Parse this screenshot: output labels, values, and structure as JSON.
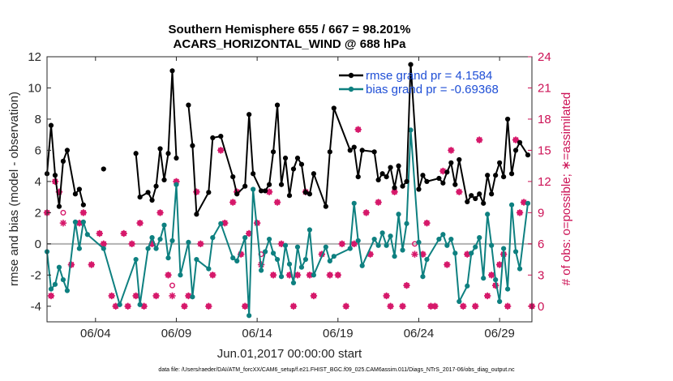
{
  "chart_data": {
    "type": "line",
    "title": [
      "Southern Hemisphere 655 / 667 = 98.201%",
      "ACARS_HORIZONTAL_WIND @ 688 hPa"
    ],
    "xlabel": "Jun.01,2017 00:00:00 start",
    "ylabel": "rmse and bias (model - observation)",
    "ylabel_right": "# of obs: o=possible; ∗=assimilated",
    "xlim": [
      1.0,
      31.0
    ],
    "ylim": [
      -5,
      12
    ],
    "ylim_right": [
      -1.5,
      24
    ],
    "x_tick_labels": [
      "06/04",
      "06/09",
      "06/14",
      "06/19",
      "06/24",
      "06/29"
    ],
    "x_tick_values": [
      4,
      9,
      14,
      19,
      24,
      29
    ],
    "y_ticks": [
      -4,
      -2,
      0,
      2,
      4,
      6,
      8,
      10,
      12
    ],
    "y_ticks_right": [
      0,
      3,
      6,
      9,
      12,
      15,
      18,
      21,
      24
    ],
    "legend": [
      "rmse grand pr = 4.1584",
      "bias grand pr = -0.69368"
    ],
    "colors": {
      "rmse": "#000000",
      "bias": "#0e8080",
      "obs": "#d6186a",
      "zero": "#b3b3b3"
    },
    "footer": "data file: /Users/raeder/DAI/ATM_forcXX/CAM6_setup/f.e21.FHIST_BGC.f09_025.CAM6assim.011/Diags_NTrS_2017-06/obs_diag_output.nc",
    "series": [
      {
        "name": "rmse",
        "x": [
          1.0,
          1.25,
          1.5,
          1.75,
          2.0,
          2.25,
          2.75,
          3.0,
          3.25,
          3.5,
          4.5,
          5.5,
          6.5,
          6.75,
          7.25,
          7.5,
          7.75,
          8.0,
          8.25,
          8.5,
          8.75,
          9.0,
          9.25,
          9.75,
          10.0,
          10.25,
          11.0,
          11.25,
          11.75,
          12.5,
          12.75,
          13.25,
          13.5,
          13.75,
          14.25,
          14.5,
          14.75,
          15.0,
          15.25,
          15.5,
          15.75,
          16.0,
          16.25,
          16.5,
          16.75,
          17.0,
          17.25,
          17.5,
          18.25,
          18.5,
          18.75,
          19.75,
          20.0,
          20.25,
          20.5,
          21.25,
          21.5,
          21.75,
          22.0,
          22.25,
          22.5,
          22.75,
          23.0,
          23.25,
          23.5,
          24.0,
          24.25,
          24.5,
          25.25,
          25.5,
          25.75,
          26.0,
          26.25,
          26.5,
          27.0,
          27.25,
          27.5,
          27.75,
          28.0,
          28.25,
          28.5,
          28.75,
          29.0,
          29.25,
          29.5,
          29.75,
          30.0,
          30.25,
          30.75
        ],
        "values": [
          4.5,
          7.6,
          4.4,
          2.4,
          5.3,
          6.0,
          3.2,
          3.5,
          2.5,
          null,
          4.8,
          null,
          5.8,
          3.0,
          3.3,
          2.8,
          3.7,
          6.1,
          4.1,
          5.8,
          11.1,
          5.5,
          null,
          8.9,
          6.3,
          1.9,
          3.3,
          6.8,
          6.9,
          4.3,
          3.2,
          3.7,
          8.3,
          4.5,
          3.4,
          3.4,
          3.8,
          5.9,
          8.9,
          3.8,
          5.5,
          3.1,
          4.8,
          5.5,
          5.1,
          3.3,
          3.2,
          4.5,
          2.4,
          5.9,
          8.7,
          6.0,
          6.2,
          4.3,
          6.0,
          5.9,
          4.1,
          4.5,
          4.3,
          4.9,
          3.6,
          5.0,
          3.7,
          4.0,
          11.5,
          3.5,
          4.4,
          4.0,
          4.2,
          3.9,
          4.6,
          5.2,
          3.8,
          5.4,
          2.7,
          3.1,
          2.9,
          3.2,
          2.6,
          4.4,
          3.2,
          4.4,
          5.2,
          4.3,
          8.0,
          4.5,
          6.0,
          6.5,
          5.7
        ]
      },
      {
        "name": "bias",
        "x": [
          1.0,
          1.25,
          1.5,
          1.75,
          2.0,
          2.25,
          2.75,
          3.0,
          3.25,
          3.5,
          4.5,
          5.5,
          6.5,
          6.75,
          7.25,
          7.5,
          7.75,
          8.0,
          8.25,
          8.5,
          8.75,
          9.0,
          9.25,
          9.75,
          10.0,
          10.25,
          11.0,
          11.25,
          11.75,
          12.5,
          12.75,
          13.25,
          13.5,
          13.75,
          14.25,
          14.5,
          14.75,
          15.0,
          15.25,
          15.5,
          15.75,
          16.0,
          16.25,
          16.5,
          16.75,
          17.0,
          17.25,
          17.5,
          18.25,
          18.5,
          18.75,
          19.75,
          20.0,
          20.25,
          20.5,
          21.25,
          21.5,
          21.75,
          22.0,
          22.25,
          22.5,
          22.75,
          23.0,
          23.25,
          23.5,
          24.0,
          24.25,
          24.5,
          25.25,
          25.5,
          25.75,
          26.0,
          26.25,
          26.5,
          27.0,
          27.25,
          27.5,
          27.75,
          28.0,
          28.25,
          28.5,
          28.75,
          29.0,
          29.25,
          29.5,
          29.75,
          30.0,
          30.25,
          30.75
        ],
        "values": [
          -0.5,
          -2.9,
          -2.6,
          -1.5,
          -2.3,
          -3.0,
          1.4,
          -0.3,
          1.4,
          0.6,
          -0.3,
          -3.9,
          -1.0,
          -3.9,
          -0.3,
          0.4,
          -0.3,
          0.3,
          1.2,
          -0.9,
          0.2,
          3.8,
          -2.0,
          0.1,
          -3.4,
          -1.0,
          -1.6,
          0.4,
          1.3,
          -0.9,
          -1.1,
          0.4,
          -4.6,
          3.5,
          -1.7,
          -0.5,
          0.3,
          -0.6,
          -1.0,
          -2.1,
          -0.1,
          -1.3,
          -2.5,
          -0.2,
          -1.5,
          -1.0,
          0.9,
          -2.0,
          -0.2,
          -1.1,
          -0.8,
          -0.3,
          2.6,
          0.2,
          -1.4,
          0.3,
          -0.1,
          0.7,
          -0.1,
          0.5,
          -0.8,
          1.9,
          -0.4,
          1.3,
          7.3,
          0.1,
          -2.1,
          -1.0,
          0.3,
          0.6,
          -0.1,
          0.3,
          -0.6,
          -3.7,
          -2.7,
          -0.6,
          -0.2,
          0.4,
          -2.2,
          1.9,
          -0.1,
          -2.3,
          -3.7,
          -0.3,
          -2.9,
          2.5,
          -0.5,
          -1.6,
          2.6
        ]
      },
      {
        "name": "obs_assimilated",
        "x": [
          1.0,
          1.25,
          1.5,
          1.75,
          2.0,
          2.5,
          3.0,
          3.25,
          3.75,
          4.25,
          4.5,
          5.0,
          5.25,
          5.75,
          6.0,
          6.25,
          6.5,
          6.75,
          7.0,
          7.5,
          7.75,
          8.0,
          8.5,
          8.75,
          9.0,
          9.5,
          9.75,
          10.25,
          10.5,
          11.0,
          11.25,
          11.75,
          12.0,
          12.5,
          12.75,
          13.0,
          13.25,
          13.5,
          14.0,
          14.25,
          14.75,
          15.0,
          15.25,
          15.5,
          16.0,
          16.25,
          16.5,
          17.0,
          17.25,
          17.5,
          18.0,
          18.5,
          19.0,
          19.25,
          19.5,
          20.0,
          20.25,
          20.75,
          21.0,
          21.5,
          22.0,
          22.25,
          22.5,
          23.0,
          23.25,
          23.75,
          24.25,
          24.5,
          24.75,
          25.0,
          25.5,
          25.75,
          26.0,
          26.5,
          26.75,
          27.0,
          27.5,
          27.75,
          28.25,
          28.5,
          28.75,
          29.0,
          29.25,
          29.5,
          30.0,
          30.25,
          30.5,
          31.0
        ],
        "values": [
          9,
          1,
          12,
          11,
          8,
          4,
          8,
          9,
          4,
          7,
          6,
          1,
          0,
          7,
          0,
          6,
          1,
          8,
          0,
          6,
          1,
          9,
          3,
          1,
          12,
          0,
          1,
          11,
          6,
          0,
          3,
          15,
          8,
          10,
          11,
          5,
          0,
          7,
          8,
          4,
          11,
          3,
          10,
          6,
          3,
          0,
          3,
          11,
          3,
          1,
          5,
          3,
          3,
          6,
          0,
          6,
          17,
          9,
          5,
          10,
          1,
          0,
          11,
          0,
          2,
          5,
          5,
          8,
          0,
          0,
          13,
          4,
          15,
          11,
          0,
          5,
          0,
          16,
          1,
          3,
          2,
          4,
          5,
          0,
          16,
          9,
          10,
          0
        ]
      },
      {
        "name": "obs_possible",
        "x": [
          1.0,
          1.25,
          1.5,
          1.75,
          2.0,
          2.5,
          3.0,
          3.25,
          3.75,
          4.25,
          4.5,
          5.0,
          5.25,
          5.75,
          6.0,
          6.25,
          6.5,
          6.75,
          7.0,
          7.5,
          7.75,
          8.0,
          8.5,
          8.75,
          9.0,
          9.5,
          9.75,
          10.25,
          10.5,
          11.0,
          11.25,
          11.75,
          12.0,
          12.5,
          12.75,
          13.0,
          13.25,
          13.5,
          14.0,
          14.25,
          14.75,
          15.0,
          15.25,
          15.5,
          16.0,
          16.25,
          16.5,
          17.0,
          17.25,
          17.5,
          18.0,
          18.5,
          19.0,
          19.25,
          19.5,
          20.0,
          20.25,
          20.75,
          21.0,
          21.5,
          22.0,
          22.25,
          22.5,
          23.0,
          23.25,
          23.75,
          24.25,
          24.5,
          24.75,
          25.0,
          25.5,
          25.75,
          26.0,
          26.5,
          26.75,
          27.0,
          27.5,
          27.75,
          28.25,
          28.5,
          28.75,
          29.0,
          29.25,
          29.5,
          30.0,
          30.25,
          30.5,
          31.0
        ],
        "values": [
          9,
          1,
          12,
          11,
          9,
          4,
          8,
          9,
          4,
          7,
          6,
          1,
          0,
          7,
          0,
          6,
          1,
          8,
          0,
          6,
          1,
          9,
          3,
          2,
          12,
          0,
          1,
          11,
          6,
          0,
          3,
          15,
          8,
          10,
          11,
          5,
          0,
          7,
          8,
          5,
          11,
          3,
          10,
          6,
          3,
          0,
          3,
          11,
          3,
          1,
          5,
          3,
          3,
          6,
          0,
          6,
          17,
          9,
          5,
          10,
          1,
          0,
          11,
          0,
          2,
          6,
          5,
          8,
          0,
          0,
          13,
          4,
          15,
          11,
          0,
          5,
          0,
          16,
          1,
          3,
          2,
          4,
          5,
          0,
          16,
          9,
          10,
          0
        ]
      }
    ]
  }
}
